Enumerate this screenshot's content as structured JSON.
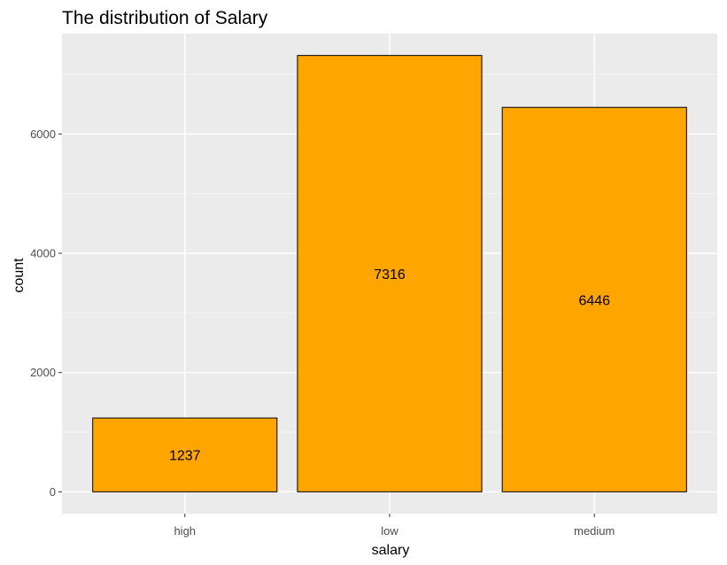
{
  "chart_data": {
    "type": "bar",
    "title": "The distribution of Salary",
    "xlabel": "salary",
    "ylabel": "count",
    "categories": [
      "high",
      "low",
      "medium"
    ],
    "values": [
      1237,
      7316,
      6446
    ],
    "data_labels": [
      "1237",
      "7316",
      "6446"
    ],
    "yticks": [
      0,
      2000,
      4000,
      6000
    ],
    "ytick_labels": [
      "0",
      "2000",
      "4000",
      "6000"
    ],
    "ylim": [
      -366,
      7682
    ],
    "grid": true,
    "legend": "none",
    "colors": {
      "panel_background": "#ebebeb",
      "grid_major": "#ffffff",
      "grid_minor": "#f5f5f5",
      "bar_fill": "#ffa500",
      "bar_outline": "#000000",
      "tick_text": "#4d4d4d",
      "tick_mark": "#333333"
    }
  }
}
